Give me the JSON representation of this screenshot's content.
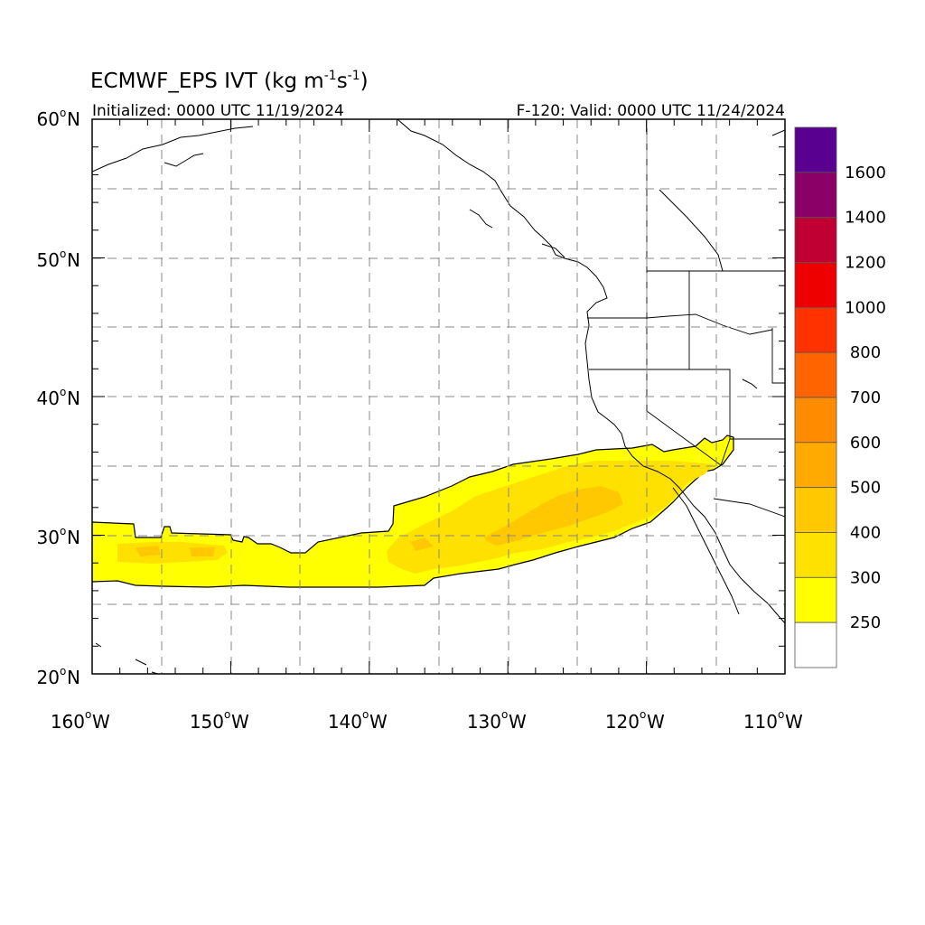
{
  "title": {
    "main": "ECMWF_EPS IVT (kg m",
    "sup1": "-1",
    "mid": "s",
    "sup2": "-1",
    "end": ")"
  },
  "subtitle": {
    "left": "Initialized: 0000 UTC 11/19/2024",
    "right": "F-120: Valid: 0000 UTC 11/24/2024"
  },
  "map": {
    "lon_range": [
      -160,
      -110
    ],
    "lat_range": [
      20,
      60
    ],
    "lat_ticks": [
      {
        "value": 60,
        "label": "60",
        "hemi": "N"
      },
      {
        "value": 50,
        "label": "50",
        "hemi": "N"
      },
      {
        "value": 40,
        "label": "40",
        "hemi": "N"
      },
      {
        "value": 30,
        "label": "30",
        "hemi": "N"
      },
      {
        "value": 20,
        "label": "20",
        "hemi": "N"
      }
    ],
    "lon_ticks": [
      {
        "value": -160,
        "label": "160",
        "hemi": "W"
      },
      {
        "value": -150,
        "label": "150",
        "hemi": "W"
      },
      {
        "value": -140,
        "label": "140",
        "hemi": "W"
      },
      {
        "value": -130,
        "label": "130",
        "hemi": "W"
      },
      {
        "value": -120,
        "label": "120",
        "hemi": "W"
      },
      {
        "value": -110,
        "label": "110",
        "hemi": "W"
      }
    ],
    "gridlines": "dashed every 5 degrees",
    "colors": {
      "ivt_250_300": "#ffff00",
      "ivt_300_400": "#ffe100",
      "ivt_400_500": "#ffc800",
      "coastline": "#000000",
      "grid": "#888888"
    }
  },
  "colorbar": {
    "labels": [
      "250",
      "300",
      "400",
      "500",
      "600",
      "700",
      "800",
      "1000",
      "1200",
      "1400",
      "1600"
    ],
    "colors": [
      "#ffffff",
      "#ffff00",
      "#ffe100",
      "#ffc800",
      "#ffaa00",
      "#ff8c00",
      "#ff6400",
      "#ff3200",
      "#ee0000",
      "#c00033",
      "#8b0066",
      "#5a0090"
    ]
  }
}
